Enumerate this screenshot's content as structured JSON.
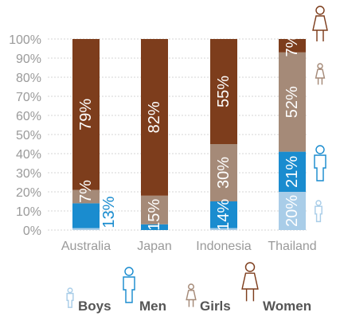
{
  "chart_data": {
    "type": "bar",
    "stacked": true,
    "categories": [
      "Australia",
      "Japan",
      "Indonesia",
      "Thailand"
    ],
    "yticks": [
      "0%",
      "10%",
      "20%",
      "30%",
      "40%",
      "50%",
      "60%",
      "70%",
      "80%",
      "90%",
      "100%"
    ],
    "ylim": [
      0,
      100
    ],
    "grid": true,
    "legend_position": "bottom",
    "series": [
      {
        "name": "Boys",
        "color": "#a9cde8",
        "values": [
          1,
          0,
          1,
          20
        ]
      },
      {
        "name": "Men",
        "color": "#1a8ccf",
        "values": [
          13,
          3,
          14,
          21
        ]
      },
      {
        "name": "Girls",
        "color": "#a58a78",
        "values": [
          7,
          15,
          30,
          52
        ]
      },
      {
        "name": "Women",
        "color": "#7d3d1c",
        "values": [
          79,
          82,
          55,
          7
        ]
      }
    ],
    "data_labels": [
      {
        "category": "Australia",
        "series": "Women",
        "text": "79%"
      },
      {
        "category": "Australia",
        "series": "Girls",
        "text": "7%"
      },
      {
        "category": "Australia",
        "series": "Men",
        "text": "13%"
      },
      {
        "category": "Japan",
        "series": "Women",
        "text": "82%"
      },
      {
        "category": "Japan",
        "series": "Girls",
        "text": "15%"
      },
      {
        "category": "Indonesia",
        "series": "Women",
        "text": "55%"
      },
      {
        "category": "Indonesia",
        "series": "Girls",
        "text": "30%"
      },
      {
        "category": "Indonesia",
        "series": "Men",
        "text": "14%"
      },
      {
        "category": "Thailand",
        "series": "Women",
        "text": "7%"
      },
      {
        "category": "Thailand",
        "series": "Girls",
        "text": "52%"
      },
      {
        "category": "Thailand",
        "series": "Men",
        "text": "21%"
      },
      {
        "category": "Thailand",
        "series": "Boys",
        "text": "20%"
      }
    ],
    "legend": [
      {
        "label": "Boys",
        "icon": "boy-figure-icon"
      },
      {
        "label": "Men",
        "icon": "man-figure-icon"
      },
      {
        "label": "Girls",
        "icon": "girl-figure-icon"
      },
      {
        "label": "Women",
        "icon": "woman-figure-icon"
      }
    ]
  }
}
